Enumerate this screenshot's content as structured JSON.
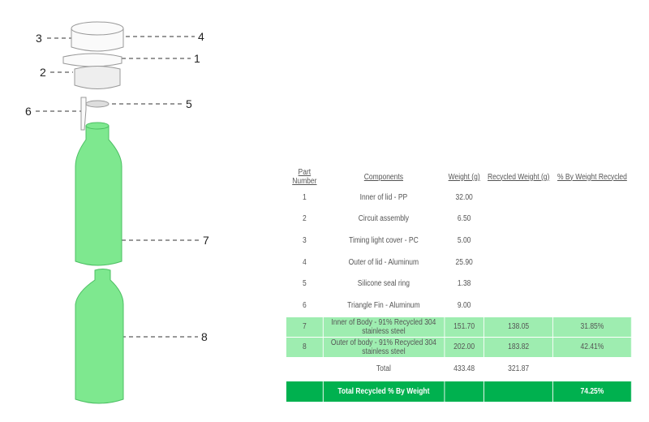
{
  "callouts": [
    "1",
    "2",
    "3",
    "4",
    "5",
    "6",
    "7",
    "8"
  ],
  "colors": {
    "body": "#7ee88f",
    "highlight_row": "#9eedb0",
    "total_row": "#00b14f"
  },
  "table": {
    "headers": [
      "Part Number",
      "Components",
      "Weight (g)",
      "Recycled Weight (g)",
      "% By Weight Recycled"
    ],
    "rows": [
      [
        "1",
        "Inner of lid - PP",
        "32.00",
        "",
        ""
      ],
      [
        "2",
        "Circuit assembly",
        "6.50",
        "",
        ""
      ],
      [
        "3",
        "Timing light cover - PC",
        "5.00",
        "",
        ""
      ],
      [
        "4",
        "Outer of lid - Aluminum",
        "25.90",
        "",
        ""
      ],
      [
        "5",
        "Silicone seal ring",
        "1.38",
        "",
        ""
      ],
      [
        "6",
        "Triangle Fin - Aluminum",
        "9.00",
        "",
        ""
      ],
      [
        "7",
        "Inner of Body - 91% Recycled 304 stainless steel",
        "151.70",
        "138.05",
        "31.85%"
      ],
      [
        "8",
        "Outer of body - 91% Recycled 304 stainless steel",
        "202.00",
        "183.82",
        "42.41%"
      ]
    ],
    "total": {
      "label": "Total",
      "weight": "433.48",
      "recycled": "321.87"
    },
    "final": {
      "label": "Total Recycled % By Weight",
      "value": "74.25%"
    }
  }
}
